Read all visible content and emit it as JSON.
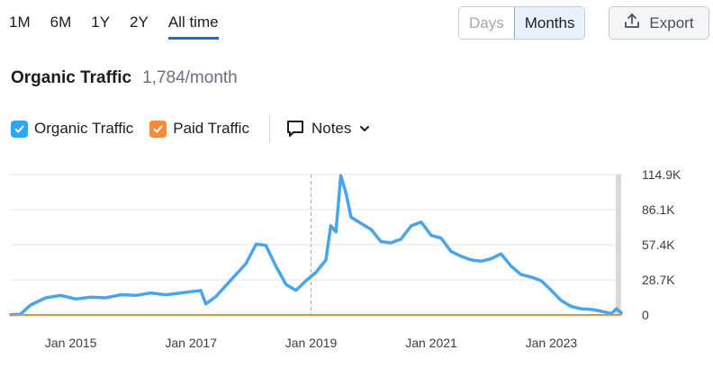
{
  "range_tabs": [
    "1M",
    "6M",
    "1Y",
    "2Y",
    "All time"
  ],
  "active_range": "All time",
  "granularity": {
    "options": [
      "Days",
      "Months"
    ],
    "selected": "Months"
  },
  "export_label": "Export",
  "metric": {
    "title": "Organic Traffic",
    "value": "1,784/month"
  },
  "legend": [
    {
      "label": "Organic Traffic",
      "checked": true,
      "color": "#2ca7f2"
    },
    {
      "label": "Paid Traffic",
      "checked": true,
      "color": "#f38b3c"
    }
  ],
  "notes_label": "Notes",
  "chart_data": {
    "type": "line",
    "y_ticks": [
      "114.9K",
      "86.1K",
      "57.4K",
      "28.7K",
      "0"
    ],
    "x_ticks": [
      "Jan 2015",
      "Jan 2017",
      "Jan 2019",
      "Jan 2021",
      "Jan 2023"
    ],
    "ylim": [
      0,
      114900
    ],
    "grid": true,
    "series": [
      {
        "name": "Organic Traffic",
        "color": "#4aa4ea",
        "points": [
          [
            "2014-01",
            200
          ],
          [
            "2014-03",
            600
          ],
          [
            "2014-05",
            8000
          ],
          [
            "2014-08",
            14000
          ],
          [
            "2014-11",
            16000
          ],
          [
            "2015-02",
            13000
          ],
          [
            "2015-05",
            14500
          ],
          [
            "2015-08",
            14000
          ],
          [
            "2015-11",
            16500
          ],
          [
            "2016-02",
            16000
          ],
          [
            "2016-05",
            18000
          ],
          [
            "2016-08",
            16500
          ],
          [
            "2016-11",
            18000
          ],
          [
            "2017-01",
            19000
          ],
          [
            "2017-03",
            20000
          ],
          [
            "2017-04",
            9000
          ],
          [
            "2017-06",
            15000
          ],
          [
            "2017-08",
            24000
          ],
          [
            "2017-10",
            33000
          ],
          [
            "2017-12",
            42000
          ],
          [
            "2018-02",
            58000
          ],
          [
            "2018-04",
            57000
          ],
          [
            "2018-06",
            40000
          ],
          [
            "2018-08",
            25000
          ],
          [
            "2018-10",
            20000
          ],
          [
            "2018-12",
            28000
          ],
          [
            "2019-02",
            35000
          ],
          [
            "2019-04",
            45000
          ],
          [
            "2019-05",
            73000
          ],
          [
            "2019-06",
            68000
          ],
          [
            "2019-07",
            114000
          ],
          [
            "2019-08",
            100000
          ],
          [
            "2019-09",
            80000
          ],
          [
            "2019-11",
            75000
          ],
          [
            "2020-01",
            70000
          ],
          [
            "2020-03",
            60000
          ],
          [
            "2020-05",
            59000
          ],
          [
            "2020-07",
            62000
          ],
          [
            "2020-09",
            73000
          ],
          [
            "2020-11",
            76000
          ],
          [
            "2021-01",
            65000
          ],
          [
            "2021-03",
            63000
          ],
          [
            "2021-05",
            52000
          ],
          [
            "2021-07",
            48000
          ],
          [
            "2021-09",
            45000
          ],
          [
            "2021-11",
            44000
          ],
          [
            "2022-01",
            46000
          ],
          [
            "2022-03",
            50000
          ],
          [
            "2022-05",
            40000
          ],
          [
            "2022-07",
            33000
          ],
          [
            "2022-09",
            31000
          ],
          [
            "2022-11",
            28000
          ],
          [
            "2023-01",
            20000
          ],
          [
            "2023-03",
            12000
          ],
          [
            "2023-05",
            7000
          ],
          [
            "2023-07",
            5000
          ],
          [
            "2023-09",
            4500
          ],
          [
            "2023-11",
            3000
          ],
          [
            "2024-01",
            1000
          ],
          [
            "2024-02",
            5000
          ],
          [
            "2024-03",
            1784
          ]
        ]
      },
      {
        "name": "Paid Traffic",
        "color": "#f38b3c",
        "points": [
          [
            "2014-01",
            0
          ],
          [
            "2024-03",
            0
          ]
        ]
      }
    ]
  }
}
